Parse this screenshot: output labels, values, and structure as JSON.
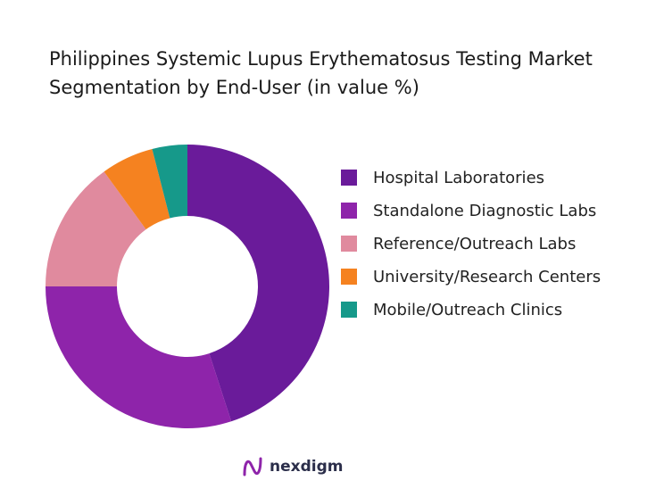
{
  "chart_data": {
    "type": "donut",
    "title": "Philippines Systemic Lupus Erythematosus Testing Market Segmentation by End-User (in value %)",
    "categories": [
      "Hospital Laboratories",
      "Standalone Diagnostic Labs",
      "Reference/Outreach Labs",
      "University/Research Centers",
      "Mobile/Outreach Clinics"
    ],
    "values": [
      45,
      30,
      15,
      6,
      4
    ],
    "colors": [
      "#6a1b9a",
      "#8e24aa",
      "#e08a9e",
      "#f58220",
      "#16998a"
    ],
    "legend": "right"
  },
  "brand": "nexdigm"
}
